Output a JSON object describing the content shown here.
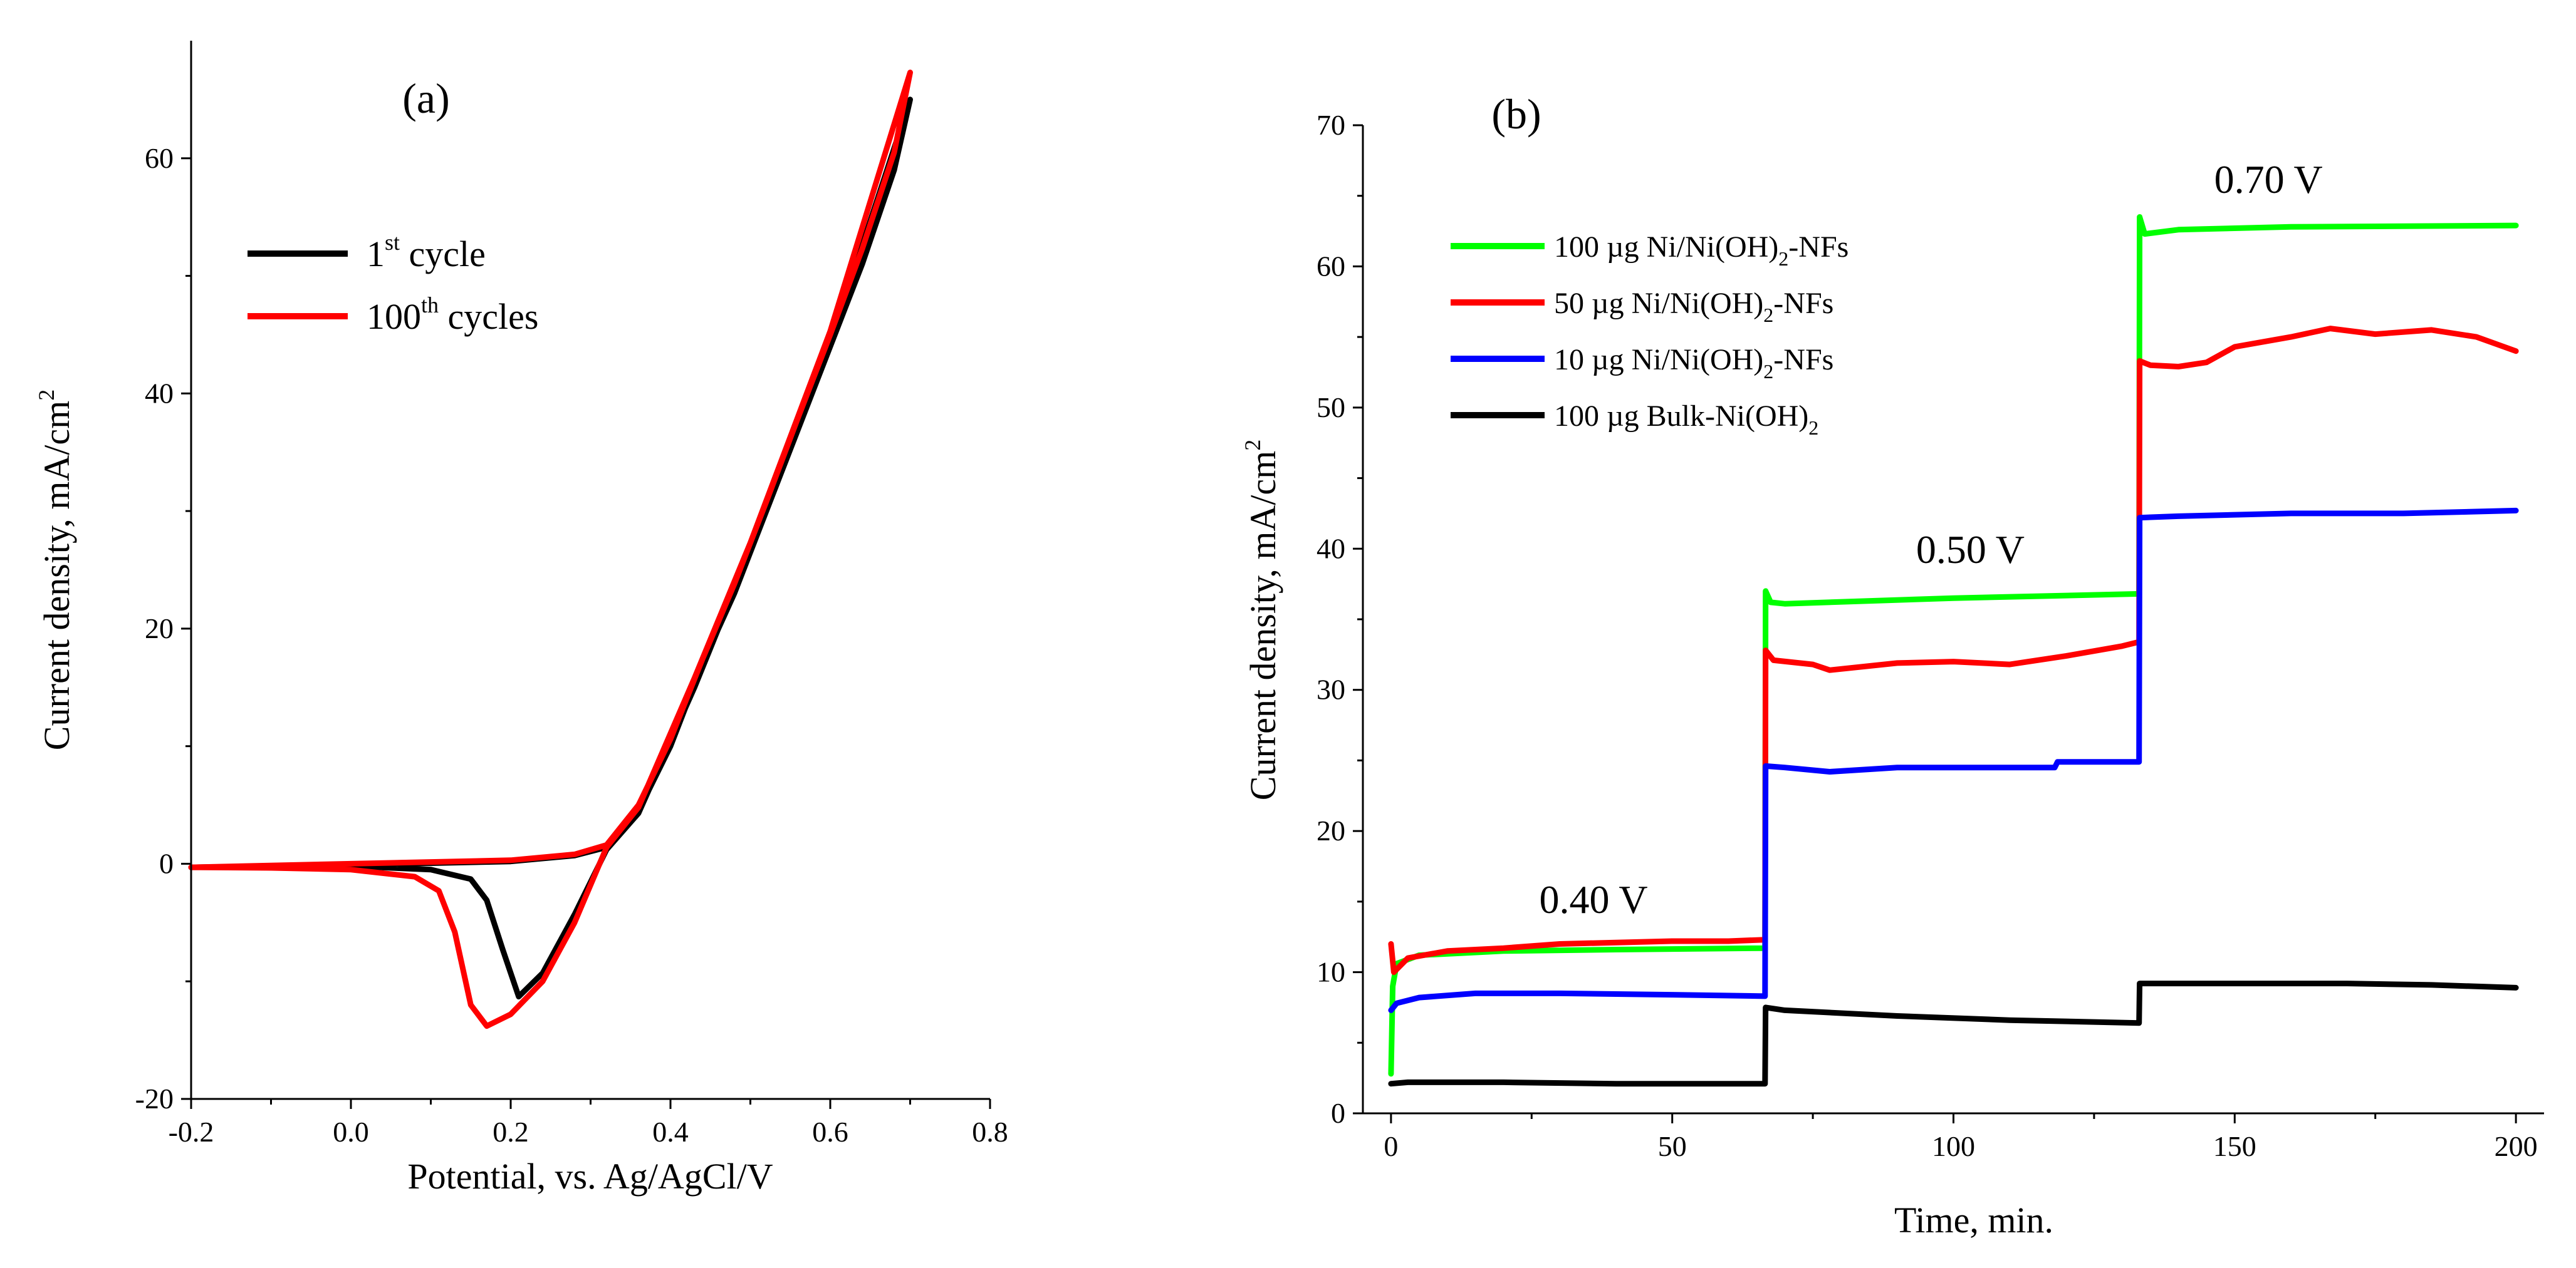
{
  "chart_data": [
    {
      "type": "line",
      "panel_label": "(a)",
      "xlabel": "Potential, vs. Ag/AgCl/V",
      "ylabel": "Current density, mA/cm",
      "ylabel_sup": "2",
      "xlim": [
        -0.2,
        0.8
      ],
      "ylim": [
        -20,
        70
      ],
      "x_ticks": [
        -0.2,
        0.0,
        0.2,
        0.4,
        0.6,
        0.8
      ],
      "x_tick_labels": [
        "-0.2",
        "0.0",
        "0.2",
        "0.4",
        "0.6",
        "0.8"
      ],
      "y_ticks": [
        -20,
        0,
        20,
        40,
        60
      ],
      "y_tick_labels": [
        "-20",
        "0",
        "20",
        "40",
        "60"
      ],
      "legend_position": "top-left",
      "series": [
        {
          "name": "1st cycle",
          "legend_main": "1",
          "legend_sup": "st",
          "legend_rest": " cycle",
          "color": "#000000",
          "forward": [
            [
              -0.2,
              -0.3
            ],
            [
              0.0,
              -0.1
            ],
            [
              0.2,
              0.2
            ],
            [
              0.28,
              0.7
            ],
            [
              0.32,
              1.4
            ],
            [
              0.36,
              4.5
            ],
            [
              0.4,
              10
            ],
            [
              0.44,
              17
            ],
            [
              0.48,
              23
            ],
            [
              0.52,
              30
            ],
            [
              0.56,
              37
            ],
            [
              0.6,
              44
            ],
            [
              0.64,
              51
            ],
            [
              0.68,
              59
            ],
            [
              0.7,
              65
            ]
          ],
          "reverse": [
            [
              0.7,
              65
            ],
            [
              0.6,
              44.3
            ],
            [
              0.5,
              26.7
            ],
            [
              0.43,
              15
            ],
            [
              0.36,
              4.3
            ],
            [
              0.32,
              1.2
            ],
            [
              0.28,
              -4.3
            ],
            [
              0.24,
              -9.3
            ],
            [
              0.21,
              -11.3
            ],
            [
              0.19,
              -7.3
            ],
            [
              0.17,
              -3.1
            ],
            [
              0.15,
              -1.3
            ],
            [
              0.1,
              -0.5
            ],
            [
              0.0,
              -0.2
            ],
            [
              -0.1,
              -0.25
            ],
            [
              -0.2,
              -0.3
            ]
          ]
        },
        {
          "name": "100th cycles",
          "legend_main": "100",
          "legend_sup": "th",
          "legend_rest": " cycles",
          "color": "#ff0000",
          "forward": [
            [
              -0.2,
              -0.3
            ],
            [
              0.0,
              0.0
            ],
            [
              0.2,
              0.3
            ],
            [
              0.28,
              0.8
            ],
            [
              0.32,
              1.6
            ],
            [
              0.36,
              5.0
            ],
            [
              0.4,
              10.6
            ],
            [
              0.44,
              17.4
            ],
            [
              0.48,
              23.8
            ],
            [
              0.52,
              30.8
            ],
            [
              0.56,
              38
            ],
            [
              0.6,
              45
            ],
            [
              0.64,
              52.3
            ],
            [
              0.68,
              60.5
            ],
            [
              0.7,
              67.3
            ]
          ],
          "reverse": [
            [
              0.7,
              67.3
            ],
            [
              0.6,
              45.3
            ],
            [
              0.5,
              27.3
            ],
            [
              0.43,
              15.8
            ],
            [
              0.36,
              4.8
            ],
            [
              0.32,
              1.4
            ],
            [
              0.28,
              -5
            ],
            [
              0.24,
              -10
            ],
            [
              0.2,
              -12.8
            ],
            [
              0.17,
              -13.8
            ],
            [
              0.15,
              -12
            ],
            [
              0.13,
              -5.8
            ],
            [
              0.11,
              -2.3
            ],
            [
              0.08,
              -1.1
            ],
            [
              0.0,
              -0.5
            ],
            [
              -0.1,
              -0.35
            ],
            [
              -0.2,
              -0.3
            ]
          ]
        }
      ]
    },
    {
      "type": "line",
      "panel_label": "(b)",
      "xlabel": "Time, min.",
      "ylabel": "Current density, mA/cm",
      "ylabel_sup": "2",
      "xlim": [
        -5,
        205
      ],
      "ylim": [
        0,
        70
      ],
      "x_ticks": [
        0,
        50,
        100,
        150,
        200
      ],
      "x_tick_labels": [
        "0",
        "50",
        "100",
        "150",
        "200"
      ],
      "y_ticks": [
        0,
        10,
        20,
        30,
        40,
        50,
        60,
        70
      ],
      "y_tick_labels": [
        "0",
        "10",
        "20",
        "30",
        "40",
        "50",
        "60",
        "70"
      ],
      "legend_position": "top-left",
      "annotations": [
        {
          "text": "0.40 V",
          "x": 36,
          "y": 14.2
        },
        {
          "text": "0.50 V",
          "x": 103,
          "y": 39
        },
        {
          "text": "0.70 V",
          "x": 156,
          "y": 65.2
        }
      ],
      "series": [
        {
          "name": "100 µg Ni/Ni(OH)2-NFs",
          "legend_main": "100 µg Ni/Ni(OH)",
          "legend_sub": "2",
          "legend_rest": "-NFs",
          "color": "#00ff00",
          "points": [
            [
              0,
              2.8
            ],
            [
              0.3,
              9
            ],
            [
              1,
              10.6
            ],
            [
              5,
              11.2
            ],
            [
              20,
              11.5
            ],
            [
              40,
              11.6
            ],
            [
              66.5,
              11.7
            ],
            [
              66.6,
              37
            ],
            [
              67.5,
              36.2
            ],
            [
              70,
              36.1
            ],
            [
              100,
              36.5
            ],
            [
              133,
              36.8
            ],
            [
              133.1,
              63.5
            ],
            [
              134,
              62.3
            ],
            [
              140,
              62.6
            ],
            [
              160,
              62.8
            ],
            [
              200,
              62.9
            ]
          ]
        },
        {
          "name": "50 µg Ni/Ni(OH)2-NFs",
          "legend_main": "50 µg Ni/Ni(OH)",
          "legend_sub": "2",
          "legend_rest": "-NFs",
          "color": "#ff0000",
          "points": [
            [
              0,
              12
            ],
            [
              0.5,
              10
            ],
            [
              3,
              11
            ],
            [
              10,
              11.5
            ],
            [
              20,
              11.7
            ],
            [
              30,
              12
            ],
            [
              40,
              12.1
            ],
            [
              50,
              12.2
            ],
            [
              60,
              12.2
            ],
            [
              66.5,
              12.3
            ],
            [
              66.6,
              32.8
            ],
            [
              68,
              32.1
            ],
            [
              75,
              31.8
            ],
            [
              78,
              31.4
            ],
            [
              90,
              31.9
            ],
            [
              100,
              32
            ],
            [
              110,
              31.8
            ],
            [
              120,
              32.4
            ],
            [
              130,
              33.1
            ],
            [
              133,
              33.4
            ],
            [
              133.1,
              53.3
            ],
            [
              135,
              53
            ],
            [
              140,
              52.9
            ],
            [
              145,
              53.2
            ],
            [
              150,
              54.3
            ],
            [
              160,
              55
            ],
            [
              167,
              55.6
            ],
            [
              175,
              55.2
            ],
            [
              185,
              55.5
            ],
            [
              193,
              55
            ],
            [
              200,
              54
            ]
          ]
        },
        {
          "name": "10 µg Ni/Ni(OH)2-NFs",
          "legend_main": "10 µg Ni/Ni(OH)",
          "legend_sub": "2",
          "legend_rest": "-NFs",
          "color": "#0000ff",
          "points": [
            [
              0,
              7.3
            ],
            [
              1,
              7.8
            ],
            [
              5,
              8.2
            ],
            [
              15,
              8.5
            ],
            [
              30,
              8.5
            ],
            [
              50,
              8.4
            ],
            [
              66.5,
              8.3
            ],
            [
              66.6,
              24.6
            ],
            [
              70,
              24.5
            ],
            [
              78,
              24.2
            ],
            [
              90,
              24.5
            ],
            [
              110,
              24.5
            ],
            [
              118,
              24.5
            ],
            [
              118.5,
              24.9
            ],
            [
              133,
              24.9
            ],
            [
              133.1,
              42.2
            ],
            [
              140,
              42.3
            ],
            [
              160,
              42.5
            ],
            [
              180,
              42.5
            ],
            [
              200,
              42.7
            ]
          ]
        },
        {
          "name": "100 µg Bulk-Ni(OH)2",
          "legend_main": "100 µg Bulk-Ni(OH)",
          "legend_sub": "2",
          "legend_rest": "",
          "color": "#000000",
          "points": [
            [
              0,
              2.1
            ],
            [
              3,
              2.2
            ],
            [
              20,
              2.2
            ],
            [
              40,
              2.1
            ],
            [
              66.5,
              2.1
            ],
            [
              66.6,
              7.5
            ],
            [
              70,
              7.3
            ],
            [
              90,
              6.9
            ],
            [
              110,
              6.6
            ],
            [
              133,
              6.4
            ],
            [
              133.1,
              9.2
            ],
            [
              140,
              9.2
            ],
            [
              170,
              9.2
            ],
            [
              185,
              9.1
            ],
            [
              200,
              8.9
            ]
          ]
        }
      ]
    }
  ]
}
